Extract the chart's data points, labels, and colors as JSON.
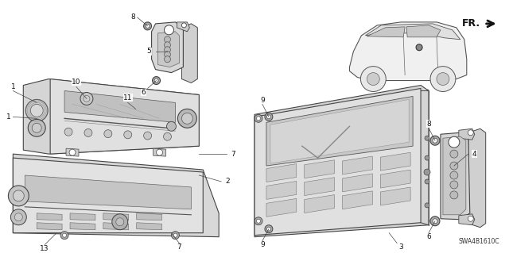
{
  "background_color": "#ffffff",
  "diagram_code": "SWA4B1610C",
  "fr_label": "FR.",
  "fig_width": 6.4,
  "fig_height": 3.19,
  "dpi": 100,
  "line_color": "#444444",
  "fill_light": "#e8e8e8",
  "fill_mid": "#cccccc",
  "fill_dark": "#aaaaaa",
  "label_fontsize": 6.5,
  "code_fontsize": 5.5
}
